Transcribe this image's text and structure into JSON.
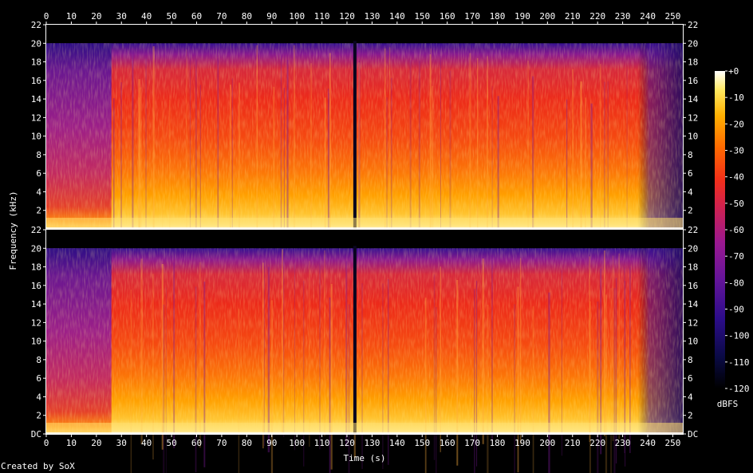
{
  "chart_data": {
    "type": "heatmap",
    "title": "",
    "xlabel": "Time (s)",
    "ylabel": "Frequency (kHz)",
    "xlim": [
      0,
      254
    ],
    "ylim": [
      0,
      22
    ],
    "x_ticks": [
      "0",
      "10",
      "20",
      "30",
      "40",
      "50",
      "60",
      "70",
      "80",
      "90",
      "100",
      "110",
      "120",
      "130",
      "140",
      "150",
      "160",
      "170",
      "180",
      "190",
      "200",
      "210",
      "220",
      "230",
      "240",
      "250"
    ],
    "top_panel_y_ticks": [
      "2",
      "4",
      "6",
      "8",
      "10",
      "12",
      "14",
      "16",
      "18",
      "20",
      "22"
    ],
    "bottom_panel_y_ticks": [
      "DC",
      "2",
      "4",
      "6",
      "8",
      "10",
      "12",
      "14",
      "16",
      "18",
      "20",
      "22"
    ],
    "channels": 2,
    "colorbar": {
      "label": "dBFS",
      "range": [
        -120,
        0
      ],
      "ticks": [
        "+0",
        "-10",
        "-20",
        "-30",
        "-40",
        "-50",
        "-60",
        "-70",
        "-80",
        "-90",
        "-100",
        "-110",
        "-120"
      ]
    },
    "features": {
      "lowpass_cutoff_khz": 20,
      "quiet_intro_end_s": 26,
      "dropout_s": 123,
      "fadeout_start_s": 236
    }
  },
  "footer": {
    "credit": "Created by SoX"
  }
}
